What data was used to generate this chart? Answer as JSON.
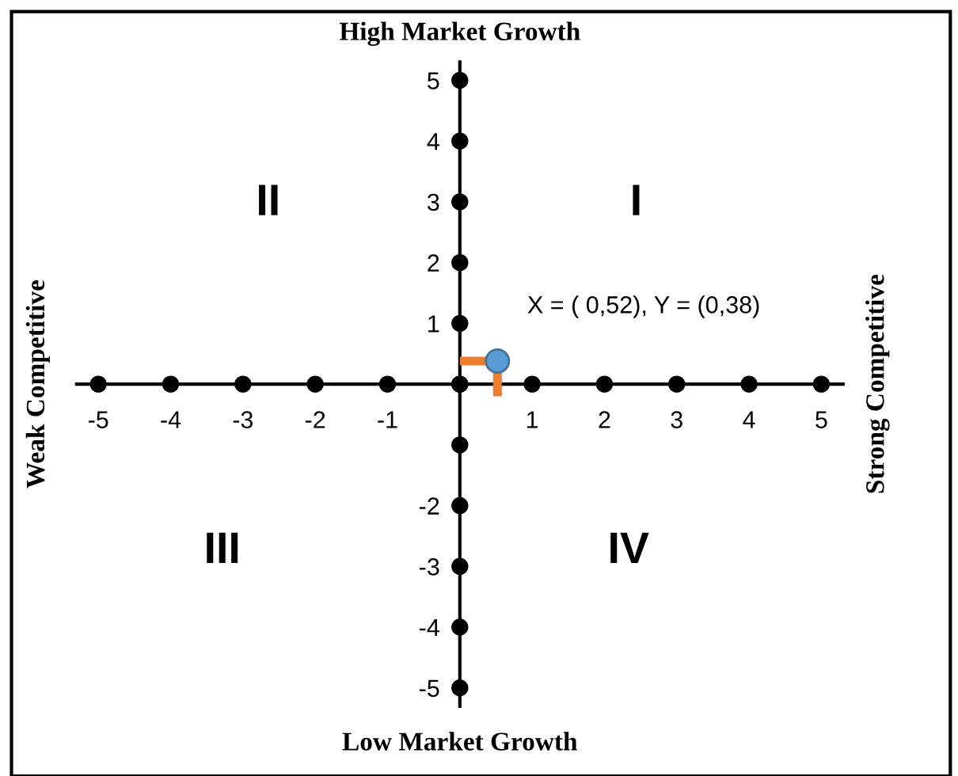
{
  "chart_data": {
    "type": "scatter",
    "title": "High Market Growth",
    "xlabel": "Low Market Growth",
    "ylabel": "Weak Competitive",
    "y2label": "Strong Competitive",
    "xlim": [
      -5.3,
      5.3
    ],
    "ylim": [
      -5.3,
      5.3
    ],
    "xticks": [
      -5,
      -4,
      -3,
      -2,
      -1,
      1,
      2,
      3,
      4,
      5
    ],
    "yticks": [
      -5,
      -4,
      -3,
      -2,
      1,
      2,
      3,
      4,
      5
    ],
    "grid": false,
    "legend": false,
    "series": [
      {
        "marker": "circle",
        "color": "#000000",
        "x": [
          -5,
          -4,
          -3,
          -2,
          -1,
          0,
          1,
          2,
          3,
          4,
          5
        ],
        "values": [
          0,
          0,
          0,
          0,
          0,
          0,
          0,
          0,
          0,
          0,
          0
        ]
      },
      {
        "marker": "circle",
        "color": "#000000",
        "x": [
          0,
          0,
          0,
          0,
          0,
          0,
          0,
          0,
          0,
          0,
          0
        ],
        "values": [
          -5,
          -4,
          -3,
          -2,
          -1,
          0,
          1,
          2,
          3,
          4,
          5
        ]
      },
      {
        "type": "line",
        "marker": "none",
        "color": "#ed7d31",
        "x": [
          0,
          0.52
        ],
        "values": [
          0.38,
          0.38
        ]
      },
      {
        "type": "line",
        "marker": "none",
        "color": "#ed7d31",
        "x": [
          0.52,
          0.52
        ],
        "values": [
          0.38,
          -0.2
        ]
      },
      {
        "marker": "circle",
        "color": "#5b9bd5",
        "x": [
          0.52
        ],
        "values": [
          0.38
        ]
      }
    ],
    "annotations": [
      "II",
      "I",
      "III",
      "IV",
      "X = ( 0,52), Y = (0,38)"
    ]
  }
}
